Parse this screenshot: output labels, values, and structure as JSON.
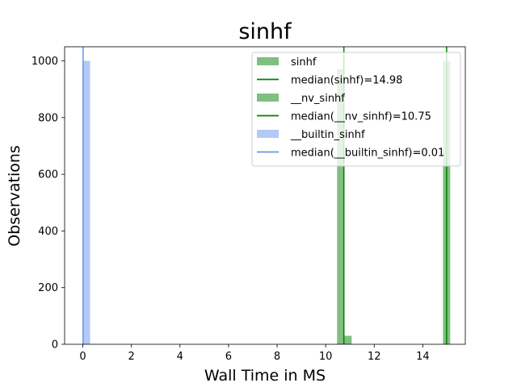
{
  "chart_data": {
    "type": "bar",
    "title": "sinhf",
    "xlabel": "Wall Time in MS",
    "ylabel": "Observations",
    "xlim": [
      -0.75,
      15.75
    ],
    "ylim": [
      0,
      1050
    ],
    "xticks": [
      0,
      2,
      4,
      6,
      8,
      10,
      12,
      14
    ],
    "yticks": [
      0,
      200,
      400,
      600,
      800,
      1000
    ],
    "grid": false,
    "legend_position": "top-right",
    "bin_width": 0.3,
    "series": [
      {
        "name": "sinhf",
        "kind": "histogram",
        "color": "#008000",
        "opacity": 0.5,
        "bins": [
          {
            "x0": 14.83,
            "x1": 15.13,
            "count": 1000
          }
        ]
      },
      {
        "name": "__nv_sinhf",
        "kind": "histogram",
        "color": "#008000",
        "opacity": 0.5,
        "bins": [
          {
            "x0": 10.47,
            "x1": 10.77,
            "count": 970
          },
          {
            "x0": 10.77,
            "x1": 11.07,
            "count": 30
          }
        ]
      },
      {
        "name": "__builtin_sinhf",
        "kind": "histogram",
        "color": "#6495ED",
        "opacity": 0.5,
        "bins": [
          {
            "x0": 0.0,
            "x1": 0.3,
            "count": 1000
          }
        ]
      }
    ],
    "medians": [
      {
        "name": "median(sinhf)=14.98",
        "value": 14.98,
        "color": "#008000"
      },
      {
        "name": "median(__nv_sinhf)=10.75",
        "value": 10.75,
        "color": "#008000"
      },
      {
        "name": "median(__builtin_sinhf)=0.01",
        "value": 0.01,
        "color": "#6495ED"
      }
    ],
    "legend": [
      {
        "label": "sinhf",
        "kind": "patch",
        "color": "#008000",
        "opacity": 0.5
      },
      {
        "label": "median(sinhf)=14.98",
        "kind": "line",
        "color": "#008000"
      },
      {
        "label": "__nv_sinhf",
        "kind": "patch",
        "color": "#008000",
        "opacity": 0.5
      },
      {
        "label": "median(__nv_sinhf)=10.75",
        "kind": "line",
        "color": "#008000"
      },
      {
        "label": "__builtin_sinhf",
        "kind": "patch",
        "color": "#6495ED",
        "opacity": 0.5
      },
      {
        "label": "median(__builtin_sinhf)=0.01",
        "kind": "line",
        "color": "#6495ED"
      }
    ]
  }
}
